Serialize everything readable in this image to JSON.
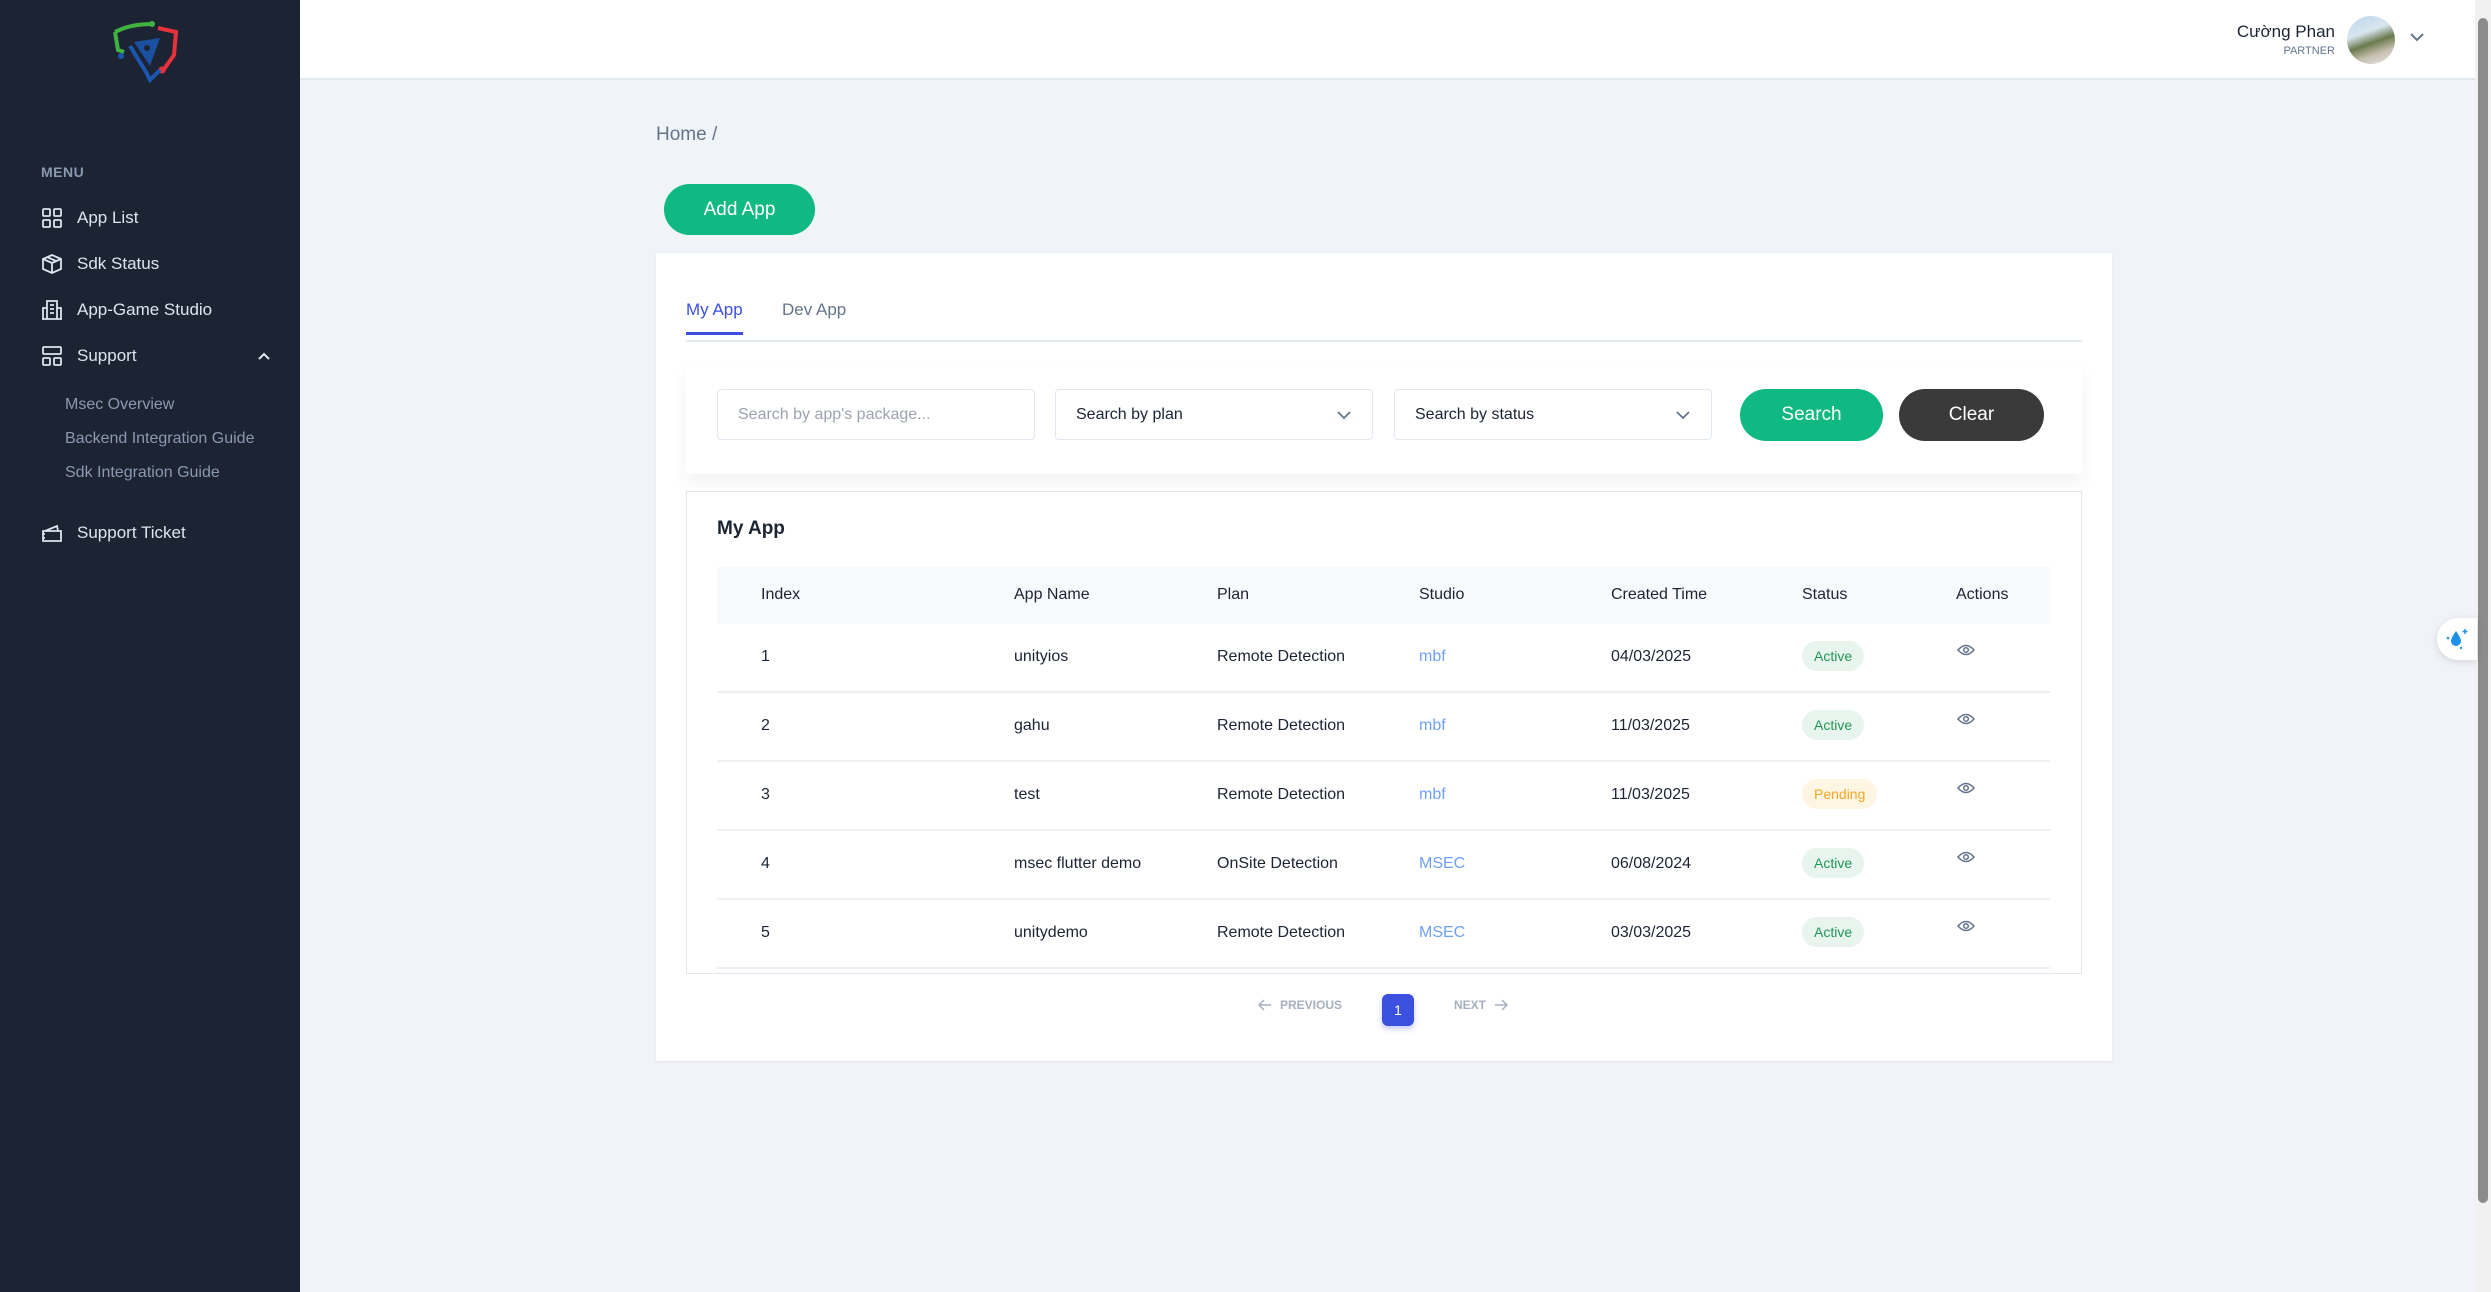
{
  "sidebar": {
    "menu_label": "MENU",
    "items": [
      {
        "label": "App List",
        "icon": "grid-icon"
      },
      {
        "label": "Sdk Status",
        "icon": "box-icon"
      },
      {
        "label": "App-Game Studio",
        "icon": "building-icon"
      },
      {
        "label": "Support",
        "icon": "layout-icon"
      },
      {
        "label": "Support Ticket",
        "icon": "ticket-icon"
      }
    ],
    "support_sub": [
      "Msec Overview",
      "Backend Integration Guide",
      "Sdk Integration Guide"
    ]
  },
  "header": {
    "user_name": "Cường Phan",
    "user_role": "PARTNER"
  },
  "breadcrumb": "Home /",
  "add_app_label": "Add App",
  "tabs": [
    {
      "label": "My App",
      "active": true
    },
    {
      "label": "Dev App",
      "active": false
    }
  ],
  "filters": {
    "package_placeholder": "Search by app's package...",
    "plan_value": "Search by plan",
    "status_value": "Search by status",
    "search_label": "Search",
    "clear_label": "Clear"
  },
  "table": {
    "title": "My App",
    "columns": [
      "Index",
      "App Name",
      "Plan",
      "Studio",
      "Created Time",
      "Status",
      "Actions"
    ],
    "rows": [
      {
        "index": "1",
        "name": "unityios",
        "plan": "Remote Detection",
        "studio": "mbf",
        "created": "04/03/2025",
        "status": "Active"
      },
      {
        "index": "2",
        "name": "gahu",
        "plan": "Remote Detection",
        "studio": "mbf",
        "created": "11/03/2025",
        "status": "Active"
      },
      {
        "index": "3",
        "name": "test",
        "plan": "Remote Detection",
        "studio": "mbf",
        "created": "11/03/2025",
        "status": "Pending"
      },
      {
        "index": "4",
        "name": "msec flutter demo",
        "plan": "OnSite Detection",
        "studio": "MSEC",
        "created": "06/08/2024",
        "status": "Active"
      },
      {
        "index": "5",
        "name": "unitydemo",
        "plan": "Remote Detection",
        "studio": "MSEC",
        "created": "03/03/2025",
        "status": "Active"
      }
    ]
  },
  "pagination": {
    "previous": "PREVIOUS",
    "next": "NEXT",
    "current": "1"
  },
  "colors": {
    "sidebar": "#1c2434",
    "primary": "#3c50e0",
    "green": "#10b981",
    "dark": "#3a3a3a"
  }
}
